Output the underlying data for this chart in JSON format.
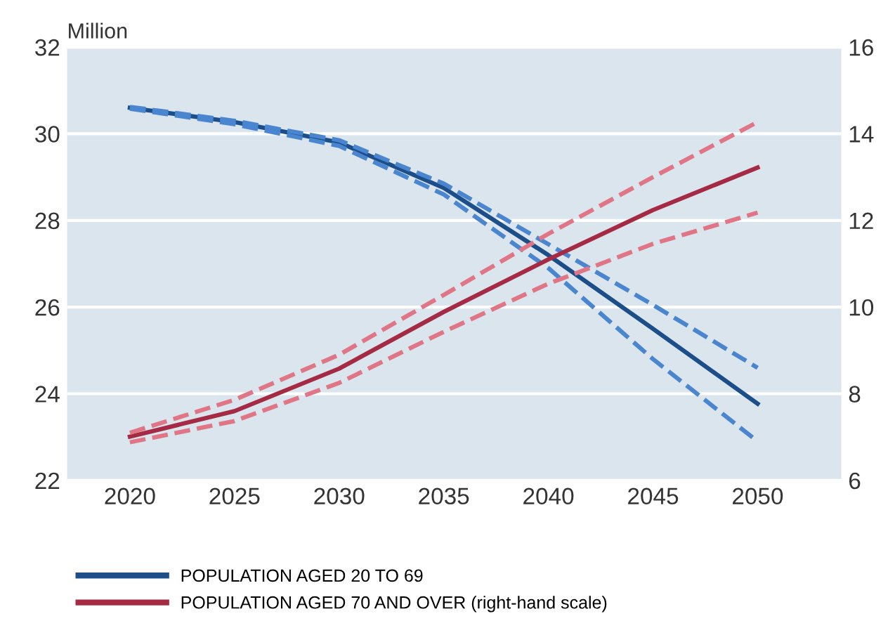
{
  "chart_data": {
    "type": "line",
    "ylabel": "Million",
    "x": [
      2020,
      2025,
      2030,
      2035,
      2040,
      2045,
      2050
    ],
    "series": [
      {
        "name": "POPULATION AGED 20 TO 69",
        "color": "#1c4f8a",
        "values": [
          30.6,
          30.27,
          29.8,
          28.75,
          27.2,
          25.5,
          23.77
        ]
      },
      {
        "color": "#4a86cf",
        "line_style": "dashed",
        "values": [
          30.62,
          30.3,
          29.85,
          28.85,
          27.45,
          26.05,
          24.6
        ]
      },
      {
        "color": "#4a86cf",
        "line_style": "dashed",
        "values": [
          30.58,
          30.22,
          29.72,
          28.6,
          26.9,
          24.8,
          22.9
        ]
      },
      {
        "name": "POPULATION AGED 70 AND OVER (right-hand scale)",
        "color": "#a52a43",
        "axis": "y2",
        "values": [
          7.01,
          7.6,
          8.58,
          9.89,
          11.1,
          12.24,
          13.22
        ]
      },
      {
        "color": "#e07685",
        "line_style": "dashed",
        "axis": "y2",
        "values": [
          7.1,
          7.86,
          8.9,
          10.28,
          11.69,
          13.0,
          14.27
        ]
      },
      {
        "color": "#e07685",
        "line_style": "dashed",
        "axis": "y2",
        "values": [
          6.88,
          7.37,
          8.25,
          9.43,
          10.54,
          11.46,
          12.18
        ]
      }
    ],
    "xlim": [
      2017,
      2054
    ],
    "xticks": [
      2020,
      2025,
      2030,
      2035,
      2040,
      2045,
      2050
    ],
    "ylim": [
      22,
      32
    ],
    "yticks": [
      22,
      24,
      26,
      28,
      30,
      32
    ],
    "y2lim": [
      6,
      16
    ],
    "y2ticks": [
      6,
      8,
      10,
      12,
      14,
      16
    ],
    "grid": "y",
    "legend": "bottom",
    "line_style": "solid",
    "marker": "none"
  }
}
